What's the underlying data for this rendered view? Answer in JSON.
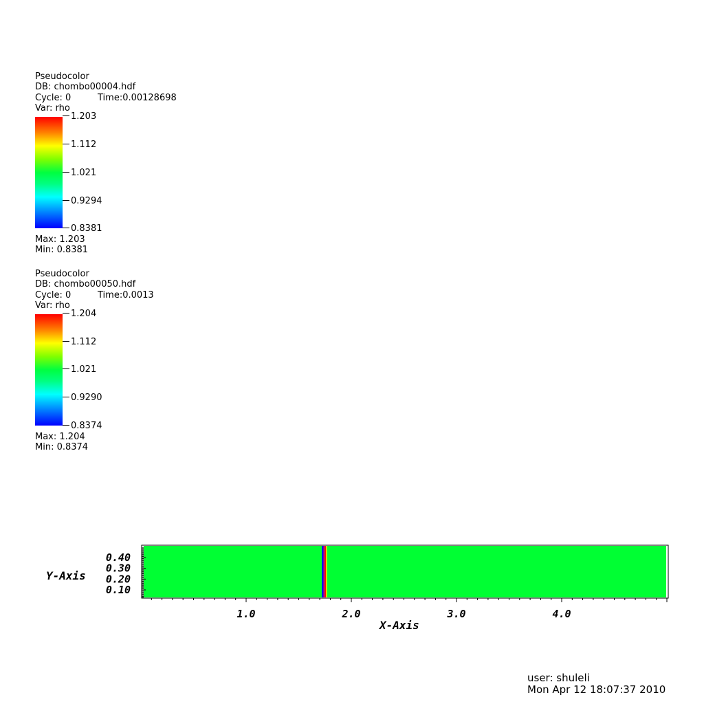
{
  "legends": [
    {
      "plot_type": "Pseudocolor",
      "db": "DB: chombo00004.hdf",
      "cycle": "Cycle: 0",
      "time": "Time:0.00128698",
      "var": "Var: rho",
      "ticks": [
        "1.203",
        "1.112",
        "1.021",
        "0.9294",
        "0.8381"
      ],
      "max": "Max:  1.203",
      "min": "Min:  0.8381"
    },
    {
      "plot_type": "Pseudocolor",
      "db": "DB: chombo00050.hdf",
      "cycle": "Cycle: 0",
      "time": "Time:0.0013",
      "var": "Var: rho",
      "ticks": [
        "1.204",
        "1.112",
        "1.021",
        "0.9290",
        "0.8374"
      ],
      "max": "Max:  1.204",
      "min": "Min:  0.8374"
    }
  ],
  "chart_data": {
    "type": "heatmap",
    "xlabel": "X-Axis",
    "ylabel": "Y-Axis",
    "xlim": [
      0.0,
      5.0
    ],
    "ylim": [
      0.0,
      0.5
    ],
    "x_ticks": [
      "1.0",
      "2.0",
      "3.0",
      "4.0"
    ],
    "x_tick_values": [
      1.0,
      2.0,
      3.0,
      4.0
    ],
    "y_ticks": [
      "0.40",
      "0.30",
      "0.20",
      "0.10"
    ],
    "y_tick_values": [
      0.4,
      0.3,
      0.2,
      0.1
    ],
    "background_value": 1.021,
    "bands": [
      {
        "x0": 1.72,
        "x1": 1.735,
        "color": "#0000ff"
      },
      {
        "x0": 1.735,
        "x1": 1.75,
        "color": "#d0006a"
      },
      {
        "x0": 1.75,
        "x1": 1.76,
        "color": "#ff0000"
      },
      {
        "x0": 1.76,
        "x1": 1.77,
        "color": "#ffee00"
      }
    ],
    "field_color": "#00ff33"
  },
  "footer": {
    "user": "user: shuleli",
    "date": "Mon Apr 12 18:07:37 2010"
  }
}
